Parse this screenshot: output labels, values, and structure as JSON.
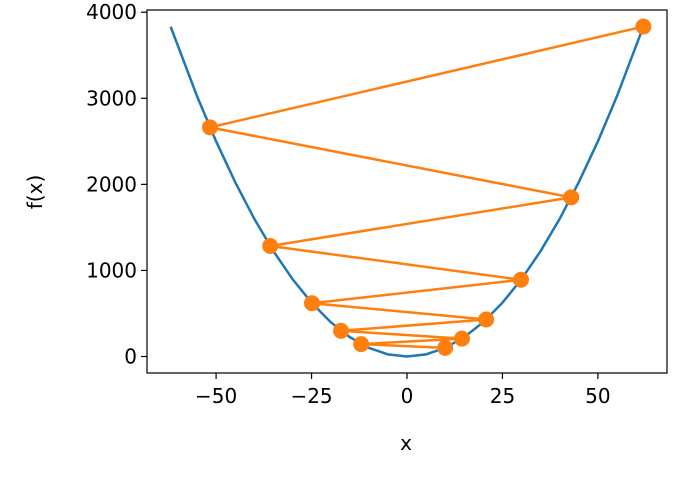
{
  "chart_data": {
    "type": "line",
    "xlabel": "x",
    "ylabel": "f(x)",
    "series": [
      {
        "color": "#1f77b4",
        "marker": false,
        "x": [
          -61.9,
          -55,
          -50,
          -45,
          -40,
          -35,
          -30,
          -25,
          -20,
          -15,
          -10,
          -5,
          0,
          5,
          10,
          15,
          20,
          25,
          30,
          35,
          40,
          45,
          50,
          55,
          61.9
        ],
        "values": [
          3832,
          3025,
          2500,
          2025,
          1600,
          1225,
          900,
          625,
          400,
          225,
          100,
          25,
          0,
          25,
          100,
          225,
          400,
          625,
          900,
          1225,
          1600,
          2025,
          2500,
          3025,
          3832
        ]
      },
      {
        "color": "#ff7f0e",
        "marker": true,
        "x": [
          10,
          -12,
          14.4,
          -17.28,
          20.736,
          -24.883,
          29.86,
          -35.832,
          42.998,
          -51.598,
          61.917
        ],
        "values": [
          100,
          144,
          207.36,
          298.6,
          430,
          619.2,
          891.6,
          1283.9,
          1848.8,
          2662.3,
          3833.7
        ]
      }
    ],
    "xlim": [
      -68.1,
      68.1
    ],
    "ylim": [
      -191.7,
      4025.9
    ],
    "xticks": [
      {
        "value": -50,
        "label": "−50"
      },
      {
        "value": -25,
        "label": "−25"
      },
      0,
      25,
      50
    ],
    "yticks": [
      0,
      1000,
      2000,
      3000,
      4000
    ]
  }
}
